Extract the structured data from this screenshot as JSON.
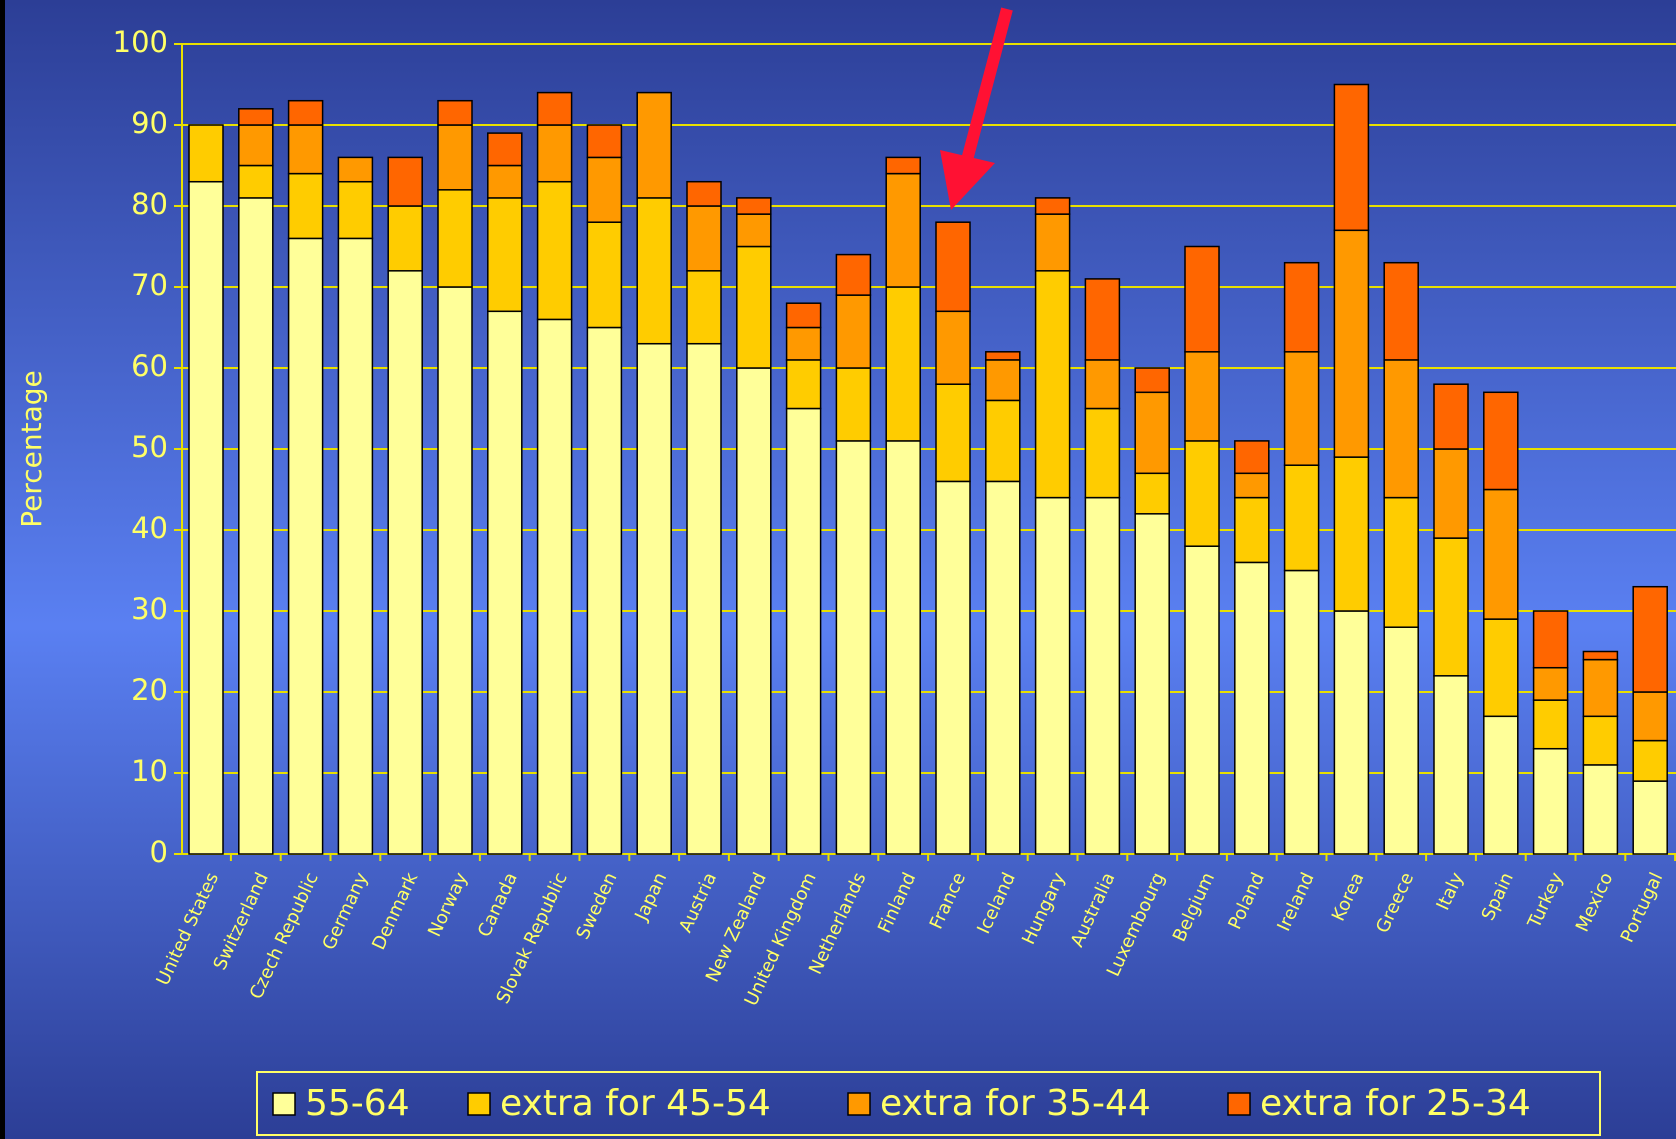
{
  "chart_data": {
    "type": "stacked_bar",
    "ylabel": "Percentage",
    "categories": [
      "United States",
      "Switzerland",
      "Czech Republic",
      "Germany",
      "Denmark",
      "Norway",
      "Canada",
      "Slovak Republic",
      "Sweden",
      "Japan",
      "Austria",
      "New Zealand",
      "United Kingdom",
      "Netherlands",
      "Finland",
      "France",
      "Iceland",
      "Hungary",
      "Australia",
      "Luxembourg",
      "Belgium",
      "Poland",
      "Ireland",
      "Korea",
      "Greece",
      "Italy",
      "Spain",
      "Turkey",
      "Mexico",
      "Portugal"
    ],
    "series": [
      {
        "name": "55-64",
        "color": "#ffff99",
        "values": [
          83,
          81,
          76,
          76,
          72,
          70,
          67,
          66,
          65,
          63,
          63,
          60,
          55,
          51,
          51,
          46,
          46,
          44,
          44,
          42,
          38,
          36,
          35,
          30,
          28,
          22,
          17,
          13,
          11,
          9
        ]
      },
      {
        "name": "extra for 45-54",
        "color": "#ffcc00",
        "values": [
          7,
          4,
          8,
          7,
          8,
          12,
          14,
          17,
          13,
          18,
          9,
          15,
          6,
          9,
          19,
          12,
          10,
          28,
          11,
          5,
          13,
          8,
          13,
          19,
          16,
          17,
          12,
          6,
          6,
          5
        ]
      },
      {
        "name": "extra for 35-44",
        "color": "#ff9900",
        "values": [
          0,
          5,
          6,
          3,
          0,
          8,
          4,
          7,
          8,
          13,
          8,
          4,
          4,
          9,
          14,
          9,
          5,
          7,
          6,
          10,
          11,
          3,
          14,
          28,
          17,
          11,
          16,
          4,
          7,
          6
        ]
      },
      {
        "name": "extra for 25-34",
        "color": "#ff6600",
        "values": [
          0,
          2,
          3,
          0,
          6,
          3,
          4,
          4,
          4,
          0,
          3,
          2,
          3,
          5,
          2,
          11,
          1,
          2,
          10,
          3,
          13,
          4,
          11,
          18,
          12,
          8,
          12,
          7,
          1,
          13
        ]
      }
    ],
    "ylim": [
      0,
      100
    ],
    "yticks": [
      0,
      10,
      20,
      30,
      40,
      50,
      60,
      70,
      80,
      90,
      100
    ],
    "grid": true,
    "legend": "bottom"
  }
}
